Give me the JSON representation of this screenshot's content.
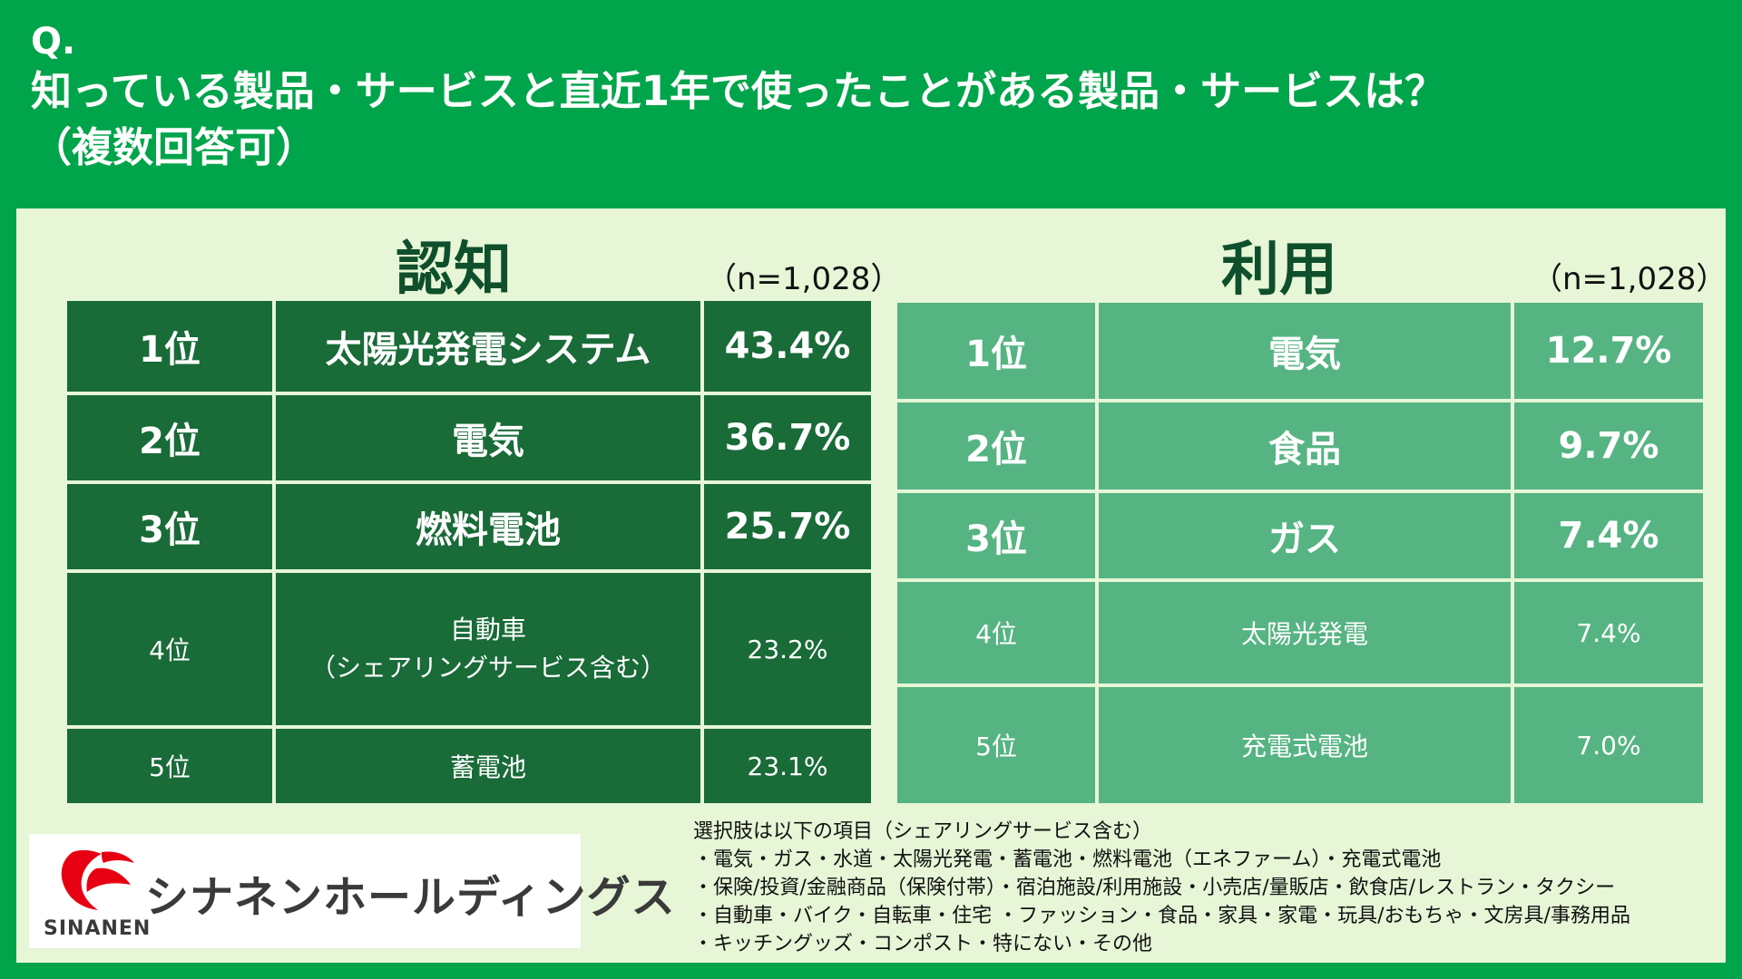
{
  "question": {
    "q_label": "Q.",
    "line1": "知っている製品・サービスと直近1年で使ったことがある製品・サービスは？",
    "line2": "（複数回答可）"
  },
  "awareness": {
    "title": "認知",
    "n_label": "（n=1,028）",
    "rows": [
      {
        "rank": "1位",
        "item": "太陽光発電システム",
        "item_sub": "",
        "pct": "43.4%"
      },
      {
        "rank": "2位",
        "item": "電気",
        "item_sub": "",
        "pct": "36.7%"
      },
      {
        "rank": "3位",
        "item": "燃料電池",
        "item_sub": "",
        "pct": "25.7%"
      },
      {
        "rank": "4位",
        "item": "自動車",
        "item_sub": "（シェアリングサービス含む）",
        "pct": "23.2%"
      },
      {
        "rank": "5位",
        "item": "蓄電池",
        "item_sub": "",
        "pct": "23.1%"
      }
    ]
  },
  "usage": {
    "title": "利用",
    "n_label": "（n=1,028）",
    "rows": [
      {
        "rank": "1位",
        "item": "電気",
        "pct": "12.7%"
      },
      {
        "rank": "2位",
        "item": "食品",
        "pct": "9.7%"
      },
      {
        "rank": "3位",
        "item": "ガス",
        "pct": "7.4%"
      },
      {
        "rank": "4位",
        "item": "太陽光発電",
        "pct": "7.4%"
      },
      {
        "rank": "5位",
        "item": "充電式電池",
        "pct": "7.0%"
      }
    ]
  },
  "notes": {
    "heading": "選択肢は以下の項目（シェアリングサービス含む）",
    "lines": [
      "・電気・ガス・水道・太陽光発電・蓄電池・燃料電池（エネファーム）・充電式電池",
      "・保険/投資/金融商品（保険付帯）・宿泊施設/利用施設・小売店/量販店・飲食店/レストラン・タクシー",
      "・自動車・バイク・自転車・住宅 ・ファッション・食品・家具・家電・玩具/おもちゃ・文房具/事務用品",
      "・キッチングッズ・コンポスト・特にない・その他"
    ]
  },
  "logo": {
    "jp": "シナネンホールディングス",
    "en": "SINANEN",
    "icon": "sinanen-mark-icon"
  },
  "colors": {
    "background": "#00a44a",
    "panel": "#e6f6d6",
    "awareness_table": "#196b38",
    "usage_table": "#56b483",
    "title_text": "#0f4f2b",
    "logo_red": "#e60012"
  }
}
